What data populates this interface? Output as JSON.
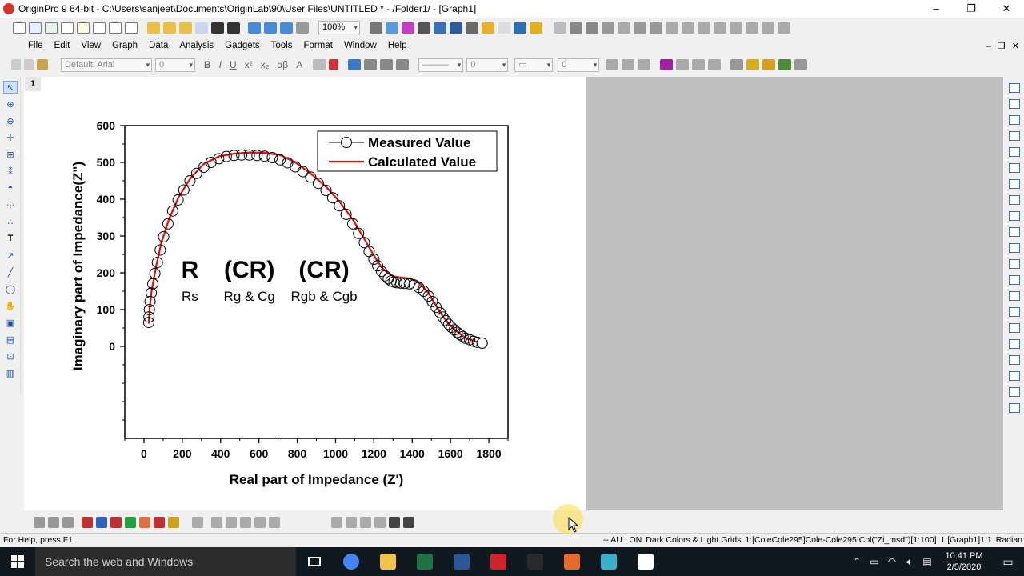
{
  "window": {
    "title": "OriginPro 9 64-bit - C:\\Users\\sanjeet\\Documents\\OriginLab\\90\\User Files\\UNTITLED * - /Folder1/ - [Graph1]",
    "minimize": "–",
    "maximize": "❐",
    "close": "✕"
  },
  "toolbar": {
    "zoom": "100%"
  },
  "menu": [
    "File",
    "Edit",
    "View",
    "Graph",
    "Data",
    "Analysis",
    "Gadgets",
    "Tools",
    "Format",
    "Window",
    "Help"
  ],
  "mdi": {
    "minimize": "–",
    "restore": "❐",
    "close": "✕"
  },
  "format": {
    "font": "Default: Arial",
    "font_size": "0",
    "bold": "B",
    "italic": "I",
    "underline": "U",
    "superscript": "x²",
    "subscript": "x₂",
    "greek": "αβ",
    "grow_font": "A",
    "line_width": "0",
    "border_width": "0"
  },
  "layer": {
    "label": "1"
  },
  "chart_data": {
    "type": "scatter",
    "xlabel": "Real part of Impedance (Z')",
    "ylabel": "Imaginary part of Impedance(Z\")",
    "xlim": [
      -100,
      1900
    ],
    "ylim": [
      -250,
      600
    ],
    "xticks": [
      0,
      200,
      400,
      600,
      800,
      1000,
      1200,
      1400,
      1600,
      1800
    ],
    "yticks": [
      0,
      100,
      200,
      300,
      400,
      500,
      600
    ],
    "legend_position": "top-right",
    "series": [
      {
        "name": "Measured Value",
        "style": "open-circle",
        "color": "#000000",
        "x": [
          25,
          26,
          28,
          32,
          38,
          46,
          57,
          70,
          85,
          103,
          125,
          150,
          178,
          208,
          240,
          275,
          312,
          350,
          390,
          430,
          470,
          510,
          550,
          590,
          630,
          670,
          710,
          750,
          790,
          830,
          870,
          910,
          950,
          985,
          1020,
          1055,
          1090,
          1120,
          1150,
          1175,
          1200,
          1220,
          1240,
          1258,
          1275,
          1290,
          1305,
          1320,
          1340,
          1360,
          1385,
          1410,
          1435,
          1460,
          1485,
          1505,
          1525,
          1545,
          1560,
          1575,
          1590,
          1605,
          1620,
          1635,
          1650,
          1665,
          1680,
          1700,
          1720,
          1740,
          1765
        ],
        "y": [
          65,
          80,
          100,
          122,
          145,
          170,
          198,
          228,
          262,
          298,
          333,
          368,
          398,
          425,
          450,
          470,
          487,
          500,
          510,
          516,
          519,
          520,
          520,
          519,
          517,
          513,
          507,
          499,
          488,
          475,
          460,
          443,
          424,
          404,
          382,
          359,
          333,
          307,
          282,
          258,
          237,
          219,
          204,
          192,
          184,
          178,
          175,
          173,
          172,
          171,
          170,
          167,
          160,
          150,
          137,
          122,
          106,
          92,
          80,
          70,
          60,
          52,
          45,
          38,
          32,
          27,
          22,
          18,
          14,
          11,
          9
        ]
      },
      {
        "name": "Calculated Value",
        "style": "line",
        "color": "#e01010",
        "x": [
          25,
          30,
          40,
          60,
          90,
          130,
          180,
          240,
          310,
          390,
          470,
          550,
          630,
          710,
          790,
          870,
          950,
          1020,
          1090,
          1150,
          1200,
          1240,
          1275,
          1305,
          1340,
          1385,
          1435,
          1485,
          1525,
          1560,
          1590,
          1620,
          1650,
          1680,
          1720,
          1765
        ],
        "y": [
          62,
          105,
          150,
          208,
          280,
          345,
          405,
          455,
          495,
          516,
          524,
          527,
          526,
          520,
          500,
          470,
          434,
          394,
          345,
          292,
          247,
          215,
          198,
          190,
          187,
          185,
          175,
          145,
          110,
          82,
          62,
          46,
          34,
          23,
          15,
          10
        ]
      }
    ],
    "annotations": [
      {
        "text": "R",
        "sub": "Rs",
        "x": 240,
        "y": 187
      },
      {
        "text": "(CR)",
        "sub": "Rg & Cg",
        "x": 550,
        "y": 187
      },
      {
        "text": "(CR)",
        "sub": "Rgb & Cgb",
        "x": 940,
        "y": 187
      }
    ]
  },
  "status": {
    "help": "For Help, press F1",
    "au": "-- AU : ON",
    "theme": "Dark Colors & Light Grids",
    "book": "1:[ColeCole295]Cole-Cole295!Col(\"Zi_msd\")[1:100]",
    "graph": "1:[Graph1]1!1",
    "unit": "Radian"
  },
  "taskbar": {
    "search_placeholder": "Search the web and Windows",
    "time": "10:41 PM",
    "date": "2/5/2020",
    "apps": [
      "chrome",
      "file-explorer",
      "excel",
      "word",
      "acrobat",
      "photos",
      "app-orange",
      "origin",
      "notepad"
    ],
    "app_colors": [
      "#4285f4",
      "#f2c14e",
      "#1f7244",
      "#2b5797",
      "#d3232a",
      "#2a2a2a",
      "#e46c2a",
      "#3ab0c8",
      "#ffffff"
    ]
  }
}
